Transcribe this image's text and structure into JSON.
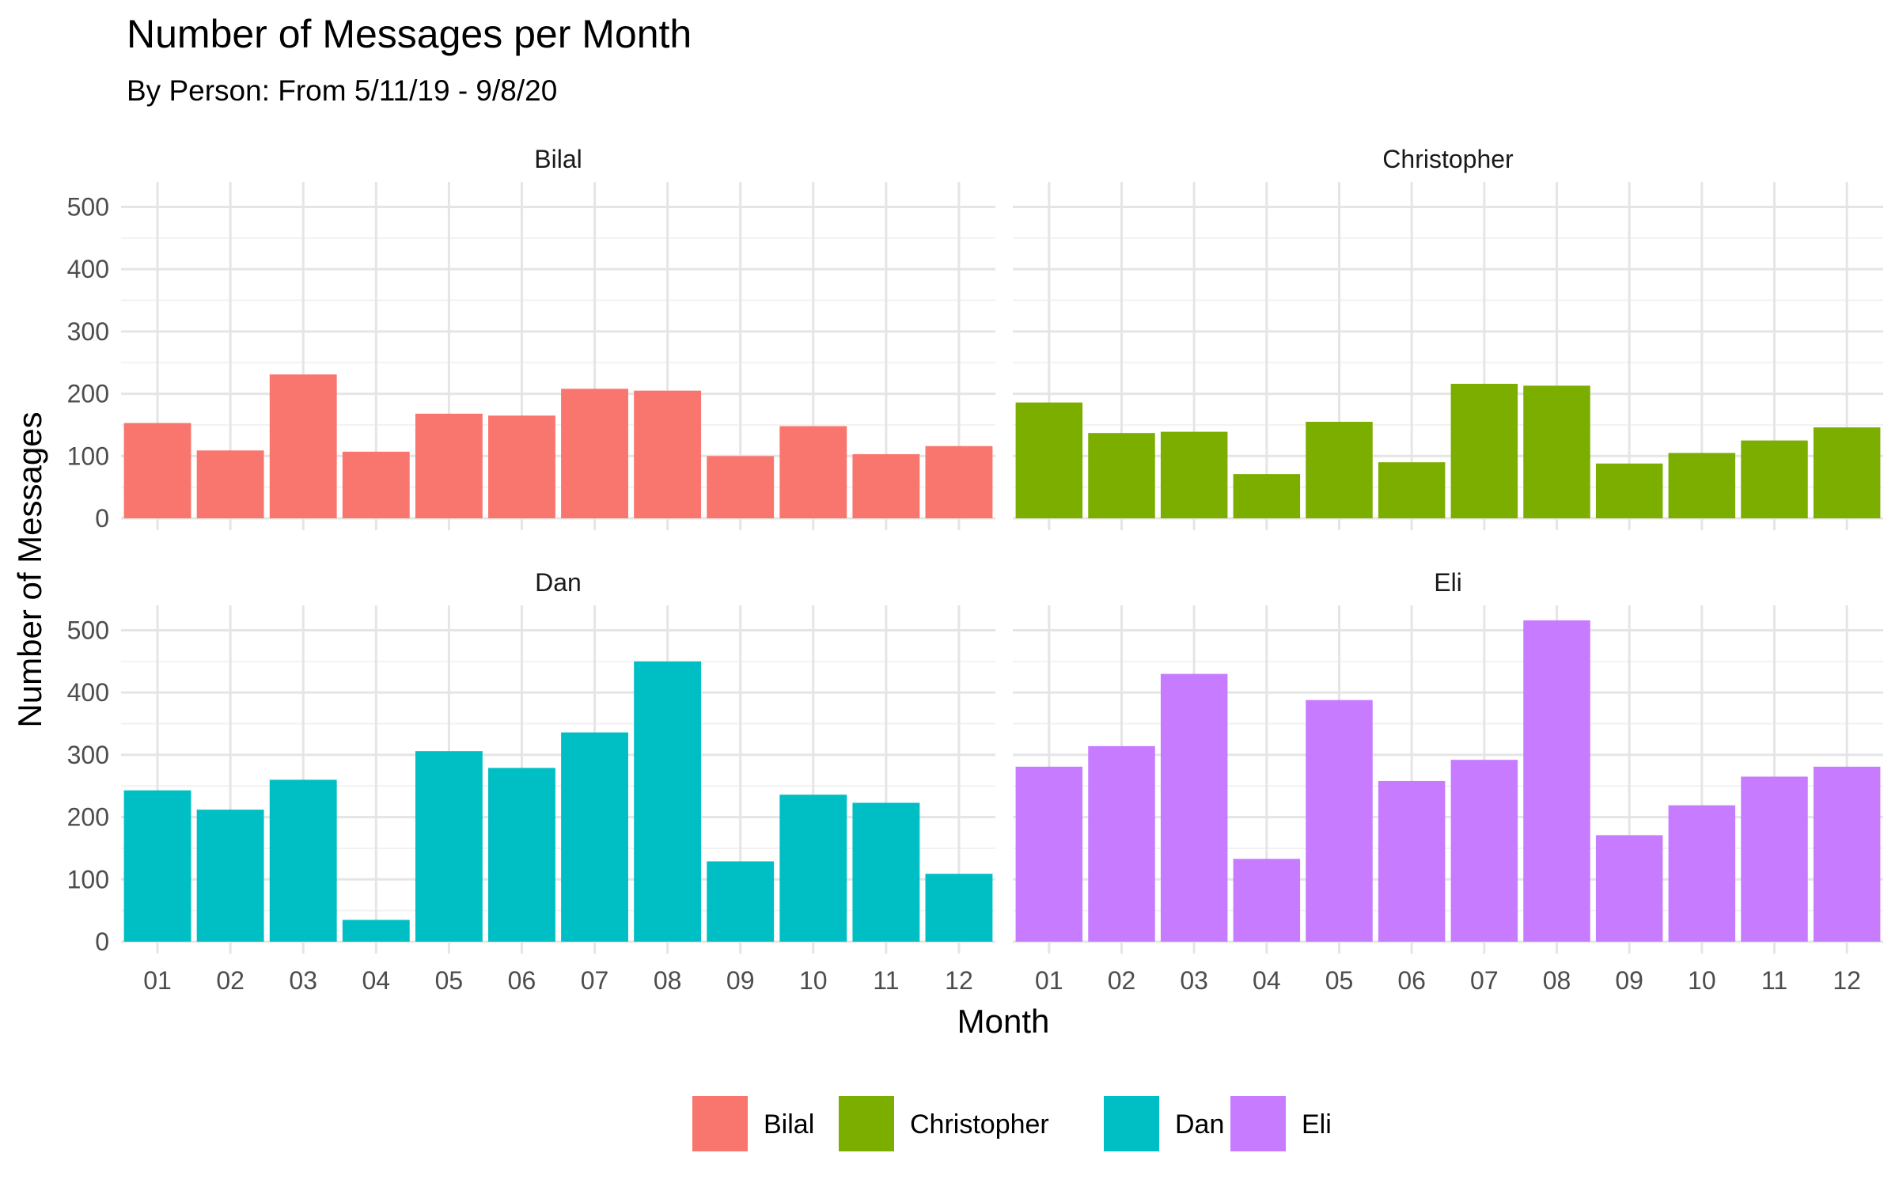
{
  "chart_data": {
    "type": "bar",
    "title": "Number of Messages per Month",
    "subtitle": "By Person: From 5/11/19 - 9/8/20",
    "xlabel": "Month",
    "ylabel": "Number of Messages",
    "categories": [
      "01",
      "02",
      "03",
      "04",
      "05",
      "06",
      "07",
      "08",
      "09",
      "10",
      "11",
      "12"
    ],
    "ylim": [
      0,
      540
    ],
    "yticks": [
      0,
      100,
      200,
      300,
      400,
      500
    ],
    "grid": true,
    "legend_position": "bottom",
    "facets": [
      "Bilal",
      "Christopher",
      "Dan",
      "Eli"
    ],
    "series": [
      {
        "name": "Bilal",
        "color": "#F8766D",
        "values": [
          153,
          109,
          231,
          107,
          168,
          165,
          208,
          205,
          100,
          148,
          103,
          116
        ]
      },
      {
        "name": "Christopher",
        "color": "#7CAE00",
        "values": [
          186,
          137,
          139,
          71,
          155,
          90,
          216,
          213,
          88,
          105,
          125,
          146
        ]
      },
      {
        "name": "Dan",
        "color": "#00BFC4",
        "values": [
          243,
          212,
          260,
          35,
          306,
          279,
          336,
          450,
          129,
          236,
          223,
          109
        ]
      },
      {
        "name": "Eli",
        "color": "#C77CFF",
        "values": [
          281,
          314,
          430,
          133,
          388,
          258,
          292,
          516,
          171,
          219,
          265,
          281
        ]
      }
    ]
  }
}
